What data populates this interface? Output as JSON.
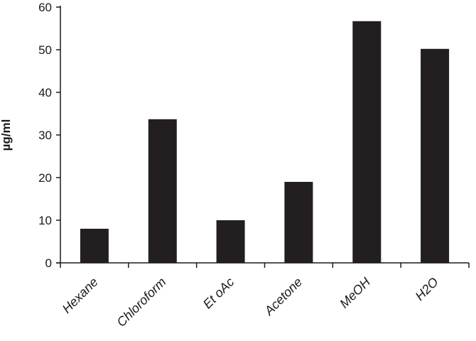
{
  "chart_data": {
    "type": "bar",
    "categories": [
      "Hexane",
      "Chloroform",
      "Et oAc",
      "Acetone",
      "MeOH",
      "H2O"
    ],
    "values": [
      8,
      33.7,
      10,
      19,
      56.7,
      50.2
    ],
    "title": "",
    "xlabel": "",
    "ylabel": "µg/ml",
    "ylim": [
      0,
      60
    ],
    "yticks": [
      0,
      10,
      20,
      30,
      40,
      50,
      60
    ],
    "grid": false,
    "bar_color": "#231f20"
  }
}
